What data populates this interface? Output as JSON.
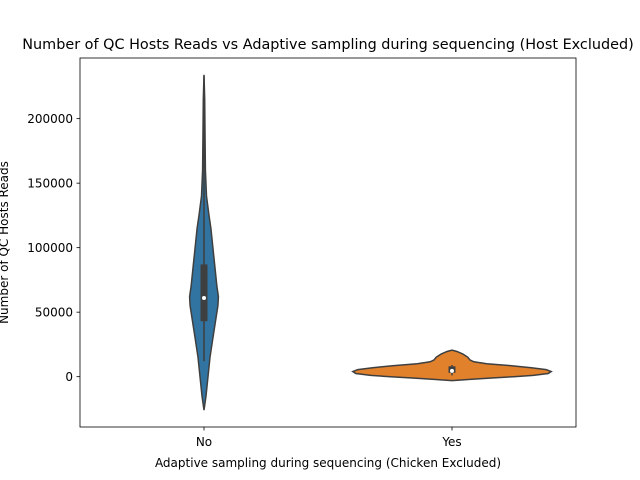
{
  "chart_data": {
    "type": "violin",
    "title": "Number of QC Hosts Reads vs Adaptive sampling during sequencing (Host Excluded)",
    "xlabel": "Adaptive sampling during sequencing (Chicken Excluded)",
    "ylabel": "Number of QC Hosts Reads",
    "categories": [
      "No",
      "Yes"
    ],
    "ylim": [
      -39000,
      247000
    ],
    "yticks": [
      0,
      50000,
      100000,
      150000,
      200000
    ],
    "ytick_labels": [
      "0",
      "50000",
      "100000",
      "150000",
      "200000"
    ],
    "grid": false,
    "legend": "none",
    "series": [
      {
        "category": "No",
        "color": "#3274a1",
        "box": {
          "q1": 43000,
          "median": 61000,
          "q3": 87000,
          "whisker_low": 12000,
          "whisker_high": 233000
        },
        "density": [
          {
            "y": -26000,
            "width": 0.0
          },
          {
            "y": -15000,
            "width": 0.02
          },
          {
            "y": 0,
            "width": 0.04
          },
          {
            "y": 15000,
            "width": 0.06
          },
          {
            "y": 30000,
            "width": 0.09
          },
          {
            "y": 45000,
            "width": 0.12
          },
          {
            "y": 55000,
            "width": 0.14
          },
          {
            "y": 62000,
            "width": 0.145
          },
          {
            "y": 70000,
            "width": 0.13
          },
          {
            "y": 85000,
            "width": 0.11
          },
          {
            "y": 100000,
            "width": 0.09
          },
          {
            "y": 115000,
            "width": 0.07
          },
          {
            "y": 125000,
            "width": 0.05
          },
          {
            "y": 140000,
            "width": 0.025
          },
          {
            "y": 160000,
            "width": 0.014
          },
          {
            "y": 190000,
            "width": 0.01
          },
          {
            "y": 215000,
            "width": 0.007
          },
          {
            "y": 234000,
            "width": 0.0
          }
        ]
      },
      {
        "category": "Yes",
        "color": "#e1812c",
        "box": {
          "q1": 3000,
          "median": 4500,
          "q3": 8000,
          "whisker_low": 1000,
          "whisker_high": 9000
        },
        "density": [
          {
            "y": -3000,
            "width": 0.0
          },
          {
            "y": -2000,
            "width": 0.2
          },
          {
            "y": -1000,
            "width": 0.4
          },
          {
            "y": 0,
            "width": 0.62
          },
          {
            "y": 1000,
            "width": 0.82
          },
          {
            "y": 2500,
            "width": 0.97
          },
          {
            "y": 4000,
            "width": 1.0
          },
          {
            "y": 5500,
            "width": 0.95
          },
          {
            "y": 7000,
            "width": 0.8
          },
          {
            "y": 8500,
            "width": 0.6
          },
          {
            "y": 10000,
            "width": 0.35
          },
          {
            "y": 11500,
            "width": 0.22
          },
          {
            "y": 13000,
            "width": 0.18
          },
          {
            "y": 15000,
            "width": 0.16
          },
          {
            "y": 17500,
            "width": 0.11
          },
          {
            "y": 19500,
            "width": 0.05
          },
          {
            "y": 20500,
            "width": 0.0
          }
        ]
      }
    ]
  }
}
